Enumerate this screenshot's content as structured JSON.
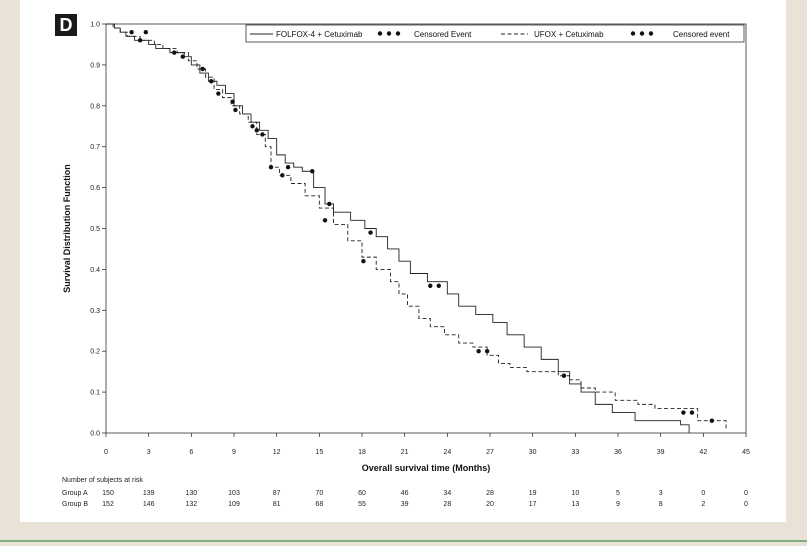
{
  "panel_label": "D",
  "chart_data": {
    "type": "line",
    "ylabel": "Survival Distribution Function",
    "xlabel": "Overall survival time (Months)",
    "xlim": [
      0,
      45
    ],
    "ylim": [
      0,
      1.0
    ],
    "xticks": [
      0,
      3,
      6,
      9,
      12,
      15,
      18,
      21,
      24,
      27,
      30,
      33,
      36,
      39,
      42,
      45
    ],
    "yticks": [
      "0.0",
      "0.1",
      "0.2",
      "0.3",
      "0.4",
      "0.5",
      "0.6",
      "0.7",
      "0.8",
      "0.9",
      "1.0"
    ],
    "legend": {
      "placement": "top-right",
      "series_a_label": "FOLFOX-4 + Cetuximab",
      "series_a_censor_label": "Censored Event",
      "series_b_label": "UFOX + Cetuximab",
      "series_b_censor_label": "Censored event"
    },
    "series": [
      {
        "name": "FOLFOX-4 + Cetuximab",
        "style": "solid",
        "steps": [
          [
            0,
            1.0
          ],
          [
            0.6,
            0.99
          ],
          [
            1.0,
            0.98
          ],
          [
            1.4,
            0.97
          ],
          [
            2.0,
            0.96
          ],
          [
            3.0,
            0.95
          ],
          [
            3.5,
            0.94
          ],
          [
            4.5,
            0.93
          ],
          [
            5.5,
            0.92
          ],
          [
            6.0,
            0.9
          ],
          [
            6.6,
            0.88
          ],
          [
            7.2,
            0.86
          ],
          [
            7.8,
            0.85
          ],
          [
            8.4,
            0.83
          ],
          [
            9.0,
            0.8
          ],
          [
            9.6,
            0.78
          ],
          [
            10.2,
            0.76
          ],
          [
            10.8,
            0.74
          ],
          [
            11.4,
            0.72
          ],
          [
            12.0,
            0.68
          ],
          [
            12.6,
            0.66
          ],
          [
            13.2,
            0.65
          ],
          [
            13.8,
            0.64
          ],
          [
            14.6,
            0.6
          ],
          [
            15.4,
            0.56
          ],
          [
            16.0,
            0.54
          ],
          [
            17.2,
            0.52
          ],
          [
            18.2,
            0.5
          ],
          [
            19.0,
            0.48
          ],
          [
            19.8,
            0.45
          ],
          [
            20.6,
            0.42
          ],
          [
            21.4,
            0.39
          ],
          [
            22.6,
            0.37
          ],
          [
            24.0,
            0.34
          ],
          [
            24.8,
            0.31
          ],
          [
            26.0,
            0.29
          ],
          [
            27.2,
            0.27
          ],
          [
            28.2,
            0.24
          ],
          [
            29.4,
            0.21
          ],
          [
            30.6,
            0.18
          ],
          [
            31.8,
            0.15
          ],
          [
            32.6,
            0.12
          ],
          [
            33.4,
            0.1
          ],
          [
            34.4,
            0.07
          ],
          [
            35.6,
            0.05
          ],
          [
            37.2,
            0.03
          ],
          [
            40.4,
            0.02
          ],
          [
            41.0,
            0.0
          ]
        ],
        "end_x": 41.0,
        "censored": [
          [
            2.4,
            0.96
          ],
          [
            4.8,
            0.93
          ],
          [
            7.4,
            0.86
          ],
          [
            8.9,
            0.81
          ],
          [
            10.6,
            0.74
          ],
          [
            11.0,
            0.73
          ],
          [
            12.8,
            0.65
          ],
          [
            14.5,
            0.64
          ],
          [
            15.7,
            0.56
          ],
          [
            18.6,
            0.49
          ],
          [
            22.8,
            0.36
          ],
          [
            23.4,
            0.36
          ],
          [
            26.8,
            0.2
          ],
          [
            32.2,
            0.14
          ]
        ]
      },
      {
        "name": "UFOX + Cetuximab",
        "style": "dashed",
        "steps": [
          [
            0,
            1.0
          ],
          [
            0.5,
            0.99
          ],
          [
            1.0,
            0.98
          ],
          [
            1.5,
            0.97
          ],
          [
            2.4,
            0.96
          ],
          [
            3.4,
            0.95
          ],
          [
            4.0,
            0.94
          ],
          [
            5.0,
            0.93
          ],
          [
            5.8,
            0.91
          ],
          [
            6.4,
            0.89
          ],
          [
            7.0,
            0.87
          ],
          [
            7.6,
            0.84
          ],
          [
            8.2,
            0.82
          ],
          [
            8.8,
            0.8
          ],
          [
            9.4,
            0.78
          ],
          [
            10.0,
            0.76
          ],
          [
            10.6,
            0.73
          ],
          [
            11.2,
            0.7
          ],
          [
            11.6,
            0.65
          ],
          [
            12.2,
            0.63
          ],
          [
            13.0,
            0.61
          ],
          [
            14.0,
            0.58
          ],
          [
            15.0,
            0.55
          ],
          [
            16.0,
            0.51
          ],
          [
            17.0,
            0.47
          ],
          [
            18.0,
            0.43
          ],
          [
            19.0,
            0.4
          ],
          [
            20.0,
            0.37
          ],
          [
            20.6,
            0.34
          ],
          [
            21.2,
            0.31
          ],
          [
            22.0,
            0.28
          ],
          [
            22.8,
            0.26
          ],
          [
            23.8,
            0.24
          ],
          [
            24.8,
            0.22
          ],
          [
            25.8,
            0.21
          ],
          [
            26.8,
            0.19
          ],
          [
            27.6,
            0.17
          ],
          [
            28.4,
            0.16
          ],
          [
            29.6,
            0.15
          ],
          [
            31.0,
            0.15
          ],
          [
            31.8,
            0.14
          ],
          [
            32.6,
            0.13
          ],
          [
            33.4,
            0.11
          ],
          [
            34.4,
            0.1
          ],
          [
            35.8,
            0.08
          ],
          [
            37.4,
            0.07
          ],
          [
            38.6,
            0.06
          ],
          [
            41.6,
            0.03
          ],
          [
            42.4,
            0.03
          ],
          [
            43.6,
            0.01
          ]
        ],
        "end_x": 43.6,
        "censored": [
          [
            1.8,
            0.98
          ],
          [
            2.8,
            0.98
          ],
          [
            5.4,
            0.92
          ],
          [
            6.8,
            0.89
          ],
          [
            7.9,
            0.83
          ],
          [
            9.1,
            0.79
          ],
          [
            10.3,
            0.75
          ],
          [
            11.6,
            0.65
          ],
          [
            12.4,
            0.63
          ],
          [
            15.4,
            0.52
          ],
          [
            18.1,
            0.42
          ],
          [
            26.2,
            0.2
          ],
          [
            40.6,
            0.05
          ],
          [
            41.2,
            0.05
          ],
          [
            42.6,
            0.03
          ]
        ]
      }
    ]
  },
  "risk_table": {
    "title": "Number of subjects at risk",
    "rows": [
      {
        "label": "Group A",
        "values": [
          "150",
          "139",
          "130",
          "103",
          "87",
          "70",
          "60",
          "46",
          "34",
          "28",
          "19",
          "10",
          "5",
          "3",
          "0",
          "0"
        ]
      },
      {
        "label": "Group B",
        "values": [
          "152",
          "146",
          "132",
          "109",
          "81",
          "68",
          "55",
          "39",
          "28",
          "20",
          "17",
          "13",
          "9",
          "8",
          "2",
          "0"
        ]
      }
    ]
  }
}
